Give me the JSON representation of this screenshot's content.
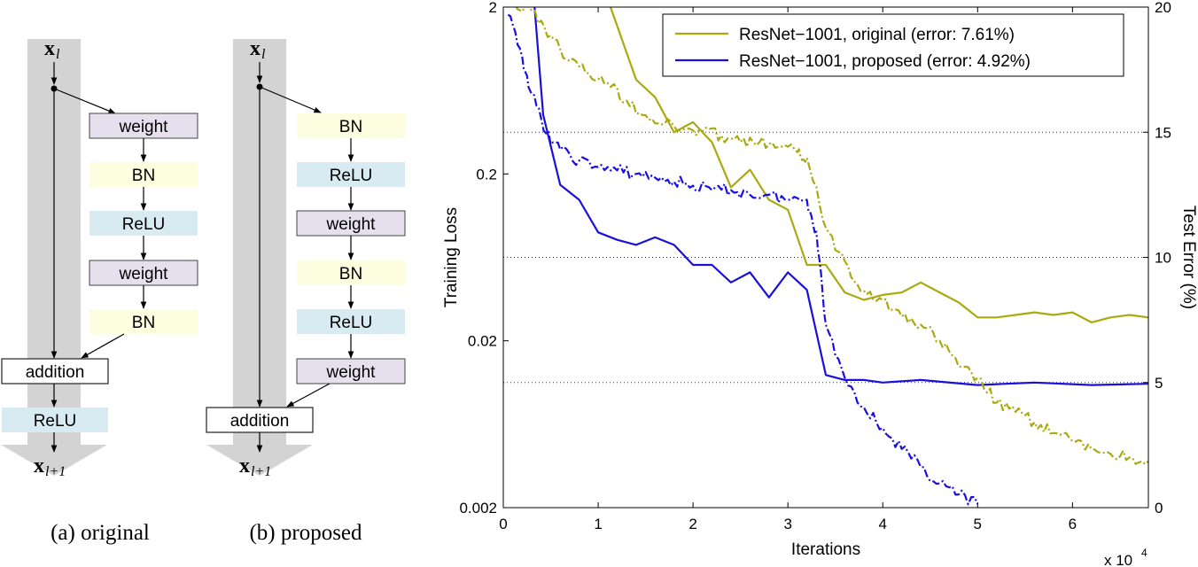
{
  "diagrams": {
    "original": {
      "caption": "(a) original",
      "input_label": "x",
      "input_sub": "l",
      "output_label": "x",
      "output_sub": "l+1",
      "blocks": [
        "weight",
        "BN",
        "ReLU",
        "weight",
        "BN"
      ],
      "addition_label": "addition",
      "post_block": "ReLU"
    },
    "proposed": {
      "caption": "(b) proposed",
      "input_label": "x",
      "input_sub": "l",
      "output_label": "x",
      "output_sub": "l+1",
      "blocks": [
        "BN",
        "ReLU",
        "weight",
        "BN",
        "ReLU",
        "weight"
      ],
      "addition_label": "addition"
    },
    "colors": {
      "weight": "#e6e0ee",
      "BN": "#fdfde0",
      "ReLU": "#d9ebf2",
      "addition": "#ffffff",
      "arrow_band": "#d3d3d3"
    }
  },
  "chart_data": {
    "type": "line",
    "xlabel": "Iterations",
    "x_multiplier": "x 10",
    "x_multiplier_exp": "4",
    "ylabel_left": "Training Loss",
    "ylabel_right": "Test Error (%)",
    "xlim": [
      0,
      68000
    ],
    "ylim_left": [
      0.002,
      2
    ],
    "yscale_left": "log",
    "ylim_right": [
      0,
      20
    ],
    "xticks": [
      "0",
      "1",
      "2",
      "3",
      "4",
      "5",
      "6"
    ],
    "xtick_values": [
      0,
      10000,
      20000,
      30000,
      40000,
      50000,
      60000
    ],
    "yticks_left": [
      "0.002",
      "0.02",
      "0.2",
      "2"
    ],
    "yticks_left_values": [
      0.002,
      0.02,
      0.2,
      2
    ],
    "yticks_right": [
      "0",
      "5",
      "10",
      "15",
      "20"
    ],
    "yticks_right_values": [
      0,
      5,
      10,
      15,
      20
    ],
    "grid": "horizontal dotted at right-axis ticks",
    "legend_position": "top-right",
    "legend": [
      {
        "label": "ResNet−1001, original (error: 7.61%)",
        "color": "#aaaa10"
      },
      {
        "label": "ResNet−1001, proposed (error: 4.92%)",
        "color": "#1a10dd"
      }
    ],
    "series": [
      {
        "name": "ResNet−1001, original (error: 7.61%)",
        "kind": "test error",
        "axis": "right",
        "color": "#aaaa10",
        "x": [
          11300,
          14000,
          16000,
          18000,
          20000,
          22000,
          24000,
          26000,
          28000,
          30000,
          32000,
          34000,
          36000,
          38000,
          40000,
          42000,
          44000,
          46000,
          48000,
          50000,
          52000,
          54000,
          56000,
          58000,
          60000,
          62000,
          64000,
          66000,
          68000
        ],
        "y": [
          20,
          17.1,
          16.4,
          15.0,
          15.4,
          14.6,
          12.8,
          13.5,
          12.3,
          11.9,
          9.7,
          9.7,
          8.6,
          8.3,
          8.5,
          8.6,
          9.0,
          8.6,
          8.2,
          7.6,
          7.6,
          7.7,
          7.8,
          7.7,
          7.8,
          7.4,
          7.6,
          7.7,
          7.6
        ]
      },
      {
        "name": "ResNet−1001, proposed (error: 4.92%)",
        "kind": "test error",
        "axis": "right",
        "color": "#1a10dd",
        "x": [
          3300,
          4200,
          6000,
          8000,
          10000,
          12000,
          14000,
          16000,
          18000,
          20000,
          22000,
          24000,
          26000,
          28000,
          30000,
          32000,
          33000,
          34000,
          36000,
          38000,
          40000,
          44000,
          50000,
          56000,
          62000,
          68000
        ],
        "y": [
          20,
          15.7,
          12.9,
          12.3,
          11.0,
          10.7,
          10.5,
          10.8,
          10.5,
          9.7,
          9.7,
          9.0,
          9.4,
          8.4,
          9.4,
          8.7,
          7.0,
          5.3,
          5.1,
          5.1,
          5.0,
          5.1,
          4.9,
          5.0,
          4.9,
          4.95
        ]
      },
      {
        "name": "ResNet−1001, original (error: 7.61%)",
        "kind": "training loss",
        "axis": "left",
        "color": "#aaaa10",
        "dashed": true,
        "x": [
          0,
          3000,
          5000,
          7000,
          9000,
          11000,
          13000,
          15000,
          17000,
          19000,
          21000,
          23000,
          25000,
          27000,
          29000,
          31000,
          32000,
          34000,
          36000,
          38000,
          40000,
          42000,
          44000,
          46000,
          48000,
          50000,
          52000,
          54000,
          56000,
          58000,
          60000,
          62000,
          64000,
          66000,
          68000
        ],
        "y": [
          2.2,
          1.9,
          1.35,
          0.95,
          0.8,
          0.7,
          0.55,
          0.45,
          0.4,
          0.37,
          0.36,
          0.34,
          0.31,
          0.31,
          0.29,
          0.27,
          0.25,
          0.095,
          0.06,
          0.04,
          0.035,
          0.028,
          0.025,
          0.02,
          0.014,
          0.012,
          0.0085,
          0.0075,
          0.0065,
          0.0056,
          0.005,
          0.0045,
          0.0042,
          0.004,
          0.0038
        ]
      },
      {
        "name": "ResNet−1001, proposed (error: 4.92%)",
        "kind": "training loss",
        "axis": "left",
        "color": "#1a10dd",
        "dashed": true,
        "x": [
          500,
          2000,
          3000,
          4500,
          6000,
          8000,
          10000,
          12000,
          14000,
          16000,
          18000,
          20000,
          22000,
          24000,
          26000,
          28000,
          30000,
          32000,
          33000,
          34000,
          36000,
          38000,
          40000,
          42000,
          44000,
          46000,
          48000,
          50000
        ],
        "y": [
          1.8,
          1.0,
          0.6,
          0.35,
          0.28,
          0.24,
          0.22,
          0.21,
          0.2,
          0.19,
          0.18,
          0.17,
          0.16,
          0.16,
          0.15,
          0.15,
          0.14,
          0.14,
          0.09,
          0.025,
          0.012,
          0.008,
          0.006,
          0.0045,
          0.0035,
          0.0028,
          0.0024,
          0.0021
        ]
      }
    ]
  }
}
